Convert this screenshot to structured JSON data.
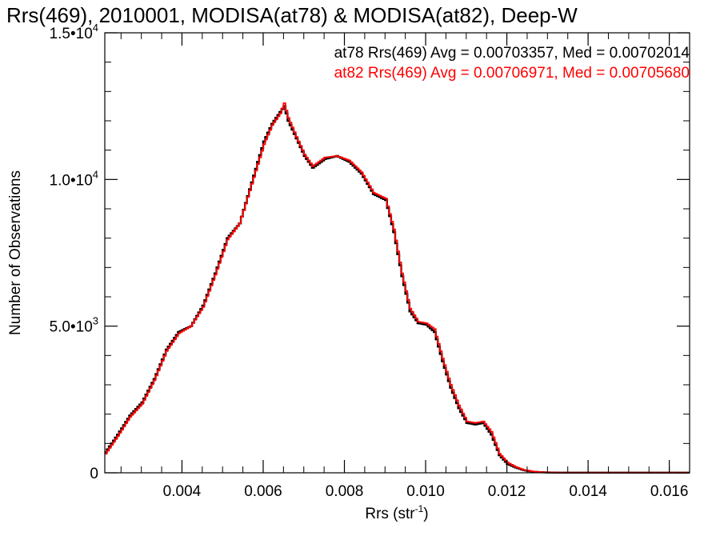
{
  "chart_data": {
    "type": "line",
    "title": "Rrs(469), 2010001, MODISA(at78) & MODISA(at82), Deep-W",
    "xlabel": "Rrs (str",
    "xlabel_sup": "-1",
    "xlabel_close": ")",
    "ylabel": "Number of Observations",
    "xlim": [
      0.0021,
      0.0165
    ],
    "ylim": [
      0,
      15000
    ],
    "xticks": [
      {
        "value": 0.004,
        "label": "0.004"
      },
      {
        "value": 0.006,
        "label": "0.006"
      },
      {
        "value": 0.008,
        "label": "0.008"
      },
      {
        "value": 0.01,
        "label": "0.010"
      },
      {
        "value": 0.012,
        "label": "0.012"
      },
      {
        "value": 0.014,
        "label": "0.014"
      },
      {
        "value": 0.016,
        "label": "0.016"
      }
    ],
    "yticks": [
      {
        "value": 0,
        "label": "0",
        "exp": ""
      },
      {
        "value": 5000,
        "label": "5.0•10",
        "exp": "3"
      },
      {
        "value": 10000,
        "label": "1.0•10",
        "exp": "4"
      },
      {
        "value": 15000,
        "label": "1.5•10",
        "exp": "4"
      }
    ],
    "grid": false,
    "legend_position": "top-right",
    "series": [
      {
        "name": "at78",
        "label": "at78 Rrs(469) Avg = 0.00703357, Med = 0.00702014",
        "color": "#000000",
        "x": [
          0.0021,
          0.0024,
          0.0027,
          0.003,
          0.0033,
          0.0036,
          0.0039,
          0.0042,
          0.0045,
          0.0048,
          0.0051,
          0.0054,
          0.0057,
          0.006,
          0.0062,
          0.0064,
          0.0065,
          0.0066,
          0.0068,
          0.007,
          0.0072,
          0.0075,
          0.0078,
          0.0081,
          0.0084,
          0.0087,
          0.009,
          0.0092,
          0.0094,
          0.0096,
          0.0098,
          0.01,
          0.0102,
          0.0104,
          0.0106,
          0.0108,
          0.011,
          0.0112,
          0.0114,
          0.0116,
          0.0118,
          0.012,
          0.0122,
          0.0124,
          0.0126,
          0.0128,
          0.013,
          0.0133,
          0.0136,
          0.014,
          0.0145,
          0.015,
          0.0155,
          0.016,
          0.0165
        ],
        "y": [
          700,
          1300,
          1950,
          2400,
          3200,
          4200,
          4800,
          5000,
          5700,
          6800,
          8000,
          8500,
          9900,
          11300,
          11900,
          12300,
          12500,
          12000,
          11400,
          10800,
          10400,
          10700,
          10800,
          10600,
          10200,
          9500,
          9300,
          8200,
          6700,
          5500,
          5100,
          5050,
          4800,
          3800,
          2900,
          2200,
          1700,
          1650,
          1700,
          1300,
          600,
          300,
          180,
          90,
          40,
          20,
          10,
          5,
          5,
          5,
          5,
          5,
          5,
          5,
          5
        ]
      },
      {
        "name": "at82",
        "label": "at82 Rrs(469) Avg = 0.00706971, Med = 0.00705680",
        "color": "#ff0000",
        "x": [
          0.0021,
          0.0024,
          0.0027,
          0.003,
          0.0033,
          0.0036,
          0.0039,
          0.0042,
          0.0045,
          0.0048,
          0.0051,
          0.0054,
          0.0057,
          0.006,
          0.0062,
          0.0064,
          0.0065,
          0.0066,
          0.0068,
          0.007,
          0.0072,
          0.0075,
          0.0078,
          0.0081,
          0.0084,
          0.0087,
          0.009,
          0.0092,
          0.0094,
          0.0096,
          0.0098,
          0.01,
          0.0102,
          0.0104,
          0.0106,
          0.0108,
          0.011,
          0.0112,
          0.0114,
          0.0116,
          0.0118,
          0.012,
          0.0122,
          0.0124,
          0.0126,
          0.0128,
          0.013,
          0.0133,
          0.0136,
          0.014,
          0.0145,
          0.015,
          0.0155,
          0.016,
          0.0165
        ],
        "y": [
          650,
          1250,
          1900,
          2350,
          3150,
          4150,
          4750,
          5000,
          5650,
          6750,
          7950,
          8500,
          9850,
          11200,
          11850,
          12250,
          12600,
          12100,
          11450,
          10850,
          10450,
          10750,
          10800,
          10650,
          10250,
          9550,
          9350,
          8300,
          6800,
          5600,
          5150,
          5100,
          4900,
          3900,
          3000,
          2300,
          1750,
          1700,
          1750,
          1400,
          650,
          350,
          200,
          100,
          50,
          25,
          12,
          6,
          6,
          6,
          6,
          6,
          6,
          6,
          6
        ]
      }
    ]
  }
}
